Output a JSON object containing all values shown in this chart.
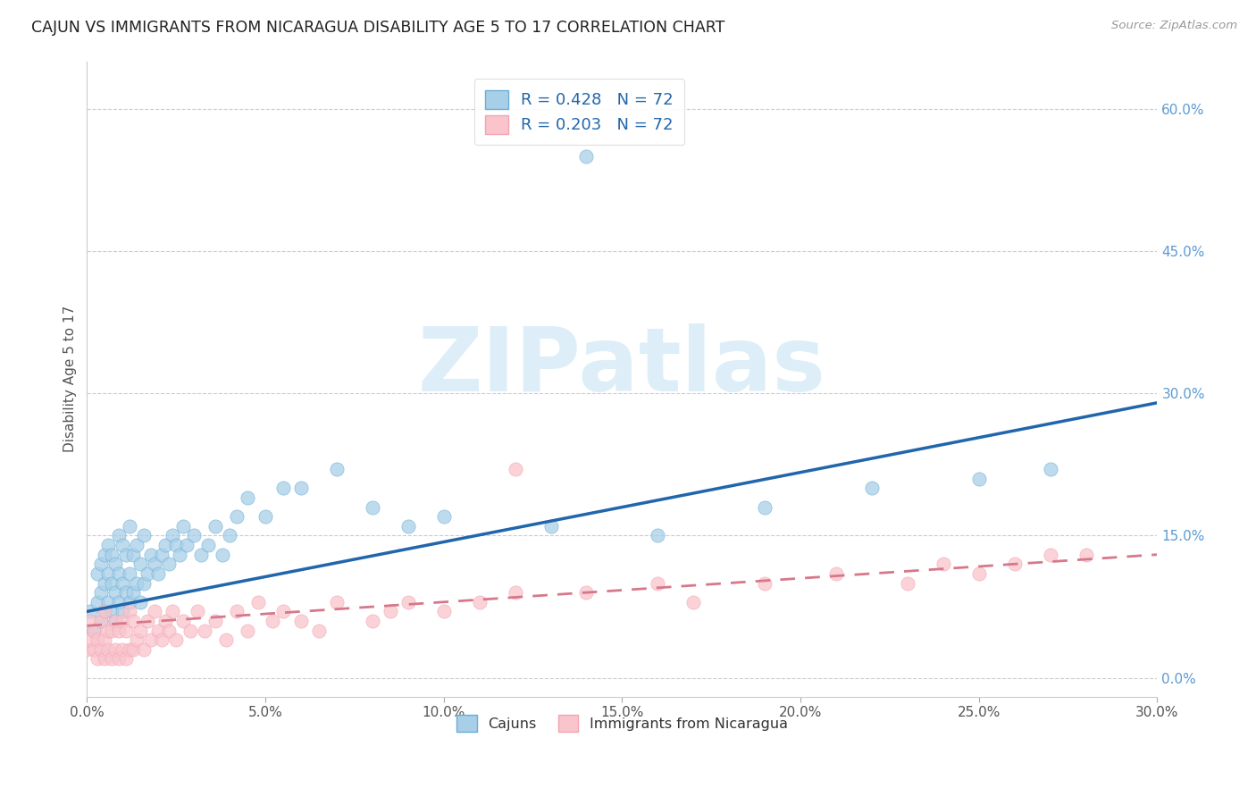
{
  "title": "CAJUN VS IMMIGRANTS FROM NICARAGUA DISABILITY AGE 5 TO 17 CORRELATION CHART",
  "source": "Source: ZipAtlas.com",
  "xlim": [
    0.0,
    0.3
  ],
  "ylim": [
    -0.02,
    0.65
  ],
  "x_tick_vals": [
    0.0,
    0.05,
    0.1,
    0.15,
    0.2,
    0.25,
    0.3
  ],
  "y_tick_vals": [
    0.0,
    0.15,
    0.3,
    0.45,
    0.6
  ],
  "cajun_R": 0.428,
  "cajun_N": 72,
  "nicaragua_R": 0.203,
  "nicaragua_N": 72,
  "cajun_color": "#a8cfe8",
  "cajun_edge_color": "#6aaed6",
  "nicaragua_color": "#f9c4cc",
  "nicaragua_edge_color": "#f4a4b0",
  "cajun_line_color": "#2166ac",
  "nicaragua_line_color": "#d6788a",
  "legend_label_cajun": "Cajuns",
  "legend_label_nicaragua": "Immigrants from Nicaragua",
  "ylabel": "Disability Age 5 to 17",
  "watermark_text": "ZIPatlas",
  "watermark_color": "#ddeef8",
  "ytick_color": "#5b9bd5",
  "xtick_color": "#555555",
  "cajun_line_x0": 0.0,
  "cajun_line_y0": 0.07,
  "cajun_line_x1": 0.3,
  "cajun_line_y1": 0.29,
  "nicaragua_line_x0": 0.0,
  "nicaragua_line_y0": 0.055,
  "nicaragua_line_x1": 0.3,
  "nicaragua_line_y1": 0.13,
  "cajun_scatter_x": [
    0.001,
    0.002,
    0.003,
    0.003,
    0.004,
    0.004,
    0.004,
    0.005,
    0.005,
    0.005,
    0.006,
    0.006,
    0.006,
    0.007,
    0.007,
    0.007,
    0.008,
    0.008,
    0.008,
    0.009,
    0.009,
    0.009,
    0.01,
    0.01,
    0.01,
    0.011,
    0.011,
    0.012,
    0.012,
    0.012,
    0.013,
    0.013,
    0.014,
    0.014,
    0.015,
    0.015,
    0.016,
    0.016,
    0.017,
    0.018,
    0.019,
    0.02,
    0.021,
    0.022,
    0.023,
    0.024,
    0.025,
    0.026,
    0.027,
    0.028,
    0.03,
    0.032,
    0.034,
    0.036,
    0.038,
    0.04,
    0.042,
    0.045,
    0.05,
    0.055,
    0.06,
    0.07,
    0.08,
    0.09,
    0.1,
    0.13,
    0.16,
    0.19,
    0.22,
    0.25,
    0.27,
    0.14
  ],
  "cajun_scatter_y": [
    0.07,
    0.05,
    0.08,
    0.11,
    0.09,
    0.12,
    0.06,
    0.07,
    0.1,
    0.13,
    0.08,
    0.11,
    0.14,
    0.07,
    0.1,
    0.13,
    0.06,
    0.09,
    0.12,
    0.08,
    0.11,
    0.15,
    0.07,
    0.1,
    0.14,
    0.09,
    0.13,
    0.08,
    0.11,
    0.16,
    0.09,
    0.13,
    0.1,
    0.14,
    0.08,
    0.12,
    0.1,
    0.15,
    0.11,
    0.13,
    0.12,
    0.11,
    0.13,
    0.14,
    0.12,
    0.15,
    0.14,
    0.13,
    0.16,
    0.14,
    0.15,
    0.13,
    0.14,
    0.16,
    0.13,
    0.15,
    0.17,
    0.19,
    0.17,
    0.2,
    0.2,
    0.22,
    0.18,
    0.16,
    0.17,
    0.16,
    0.15,
    0.18,
    0.2,
    0.21,
    0.22,
    0.55
  ],
  "nicaragua_scatter_x": [
    0.0,
    0.001,
    0.001,
    0.002,
    0.002,
    0.003,
    0.003,
    0.004,
    0.004,
    0.005,
    0.005,
    0.005,
    0.006,
    0.006,
    0.007,
    0.007,
    0.008,
    0.008,
    0.009,
    0.009,
    0.01,
    0.01,
    0.011,
    0.011,
    0.012,
    0.012,
    0.013,
    0.013,
    0.014,
    0.015,
    0.016,
    0.017,
    0.018,
    0.019,
    0.02,
    0.021,
    0.022,
    0.023,
    0.024,
    0.025,
    0.027,
    0.029,
    0.031,
    0.033,
    0.036,
    0.039,
    0.042,
    0.045,
    0.048,
    0.052,
    0.055,
    0.06,
    0.065,
    0.07,
    0.08,
    0.085,
    0.09,
    0.1,
    0.11,
    0.12,
    0.14,
    0.16,
    0.17,
    0.19,
    0.21,
    0.23,
    0.24,
    0.25,
    0.26,
    0.27,
    0.28,
    0.12
  ],
  "nicaragua_scatter_y": [
    0.03,
    0.04,
    0.06,
    0.03,
    0.05,
    0.02,
    0.04,
    0.03,
    0.06,
    0.02,
    0.04,
    0.07,
    0.03,
    0.05,
    0.02,
    0.05,
    0.03,
    0.06,
    0.02,
    0.05,
    0.03,
    0.06,
    0.02,
    0.05,
    0.03,
    0.07,
    0.03,
    0.06,
    0.04,
    0.05,
    0.03,
    0.06,
    0.04,
    0.07,
    0.05,
    0.04,
    0.06,
    0.05,
    0.07,
    0.04,
    0.06,
    0.05,
    0.07,
    0.05,
    0.06,
    0.04,
    0.07,
    0.05,
    0.08,
    0.06,
    0.07,
    0.06,
    0.05,
    0.08,
    0.06,
    0.07,
    0.08,
    0.07,
    0.08,
    0.09,
    0.09,
    0.1,
    0.08,
    0.1,
    0.11,
    0.1,
    0.12,
    0.11,
    0.12,
    0.13,
    0.13,
    0.22
  ]
}
